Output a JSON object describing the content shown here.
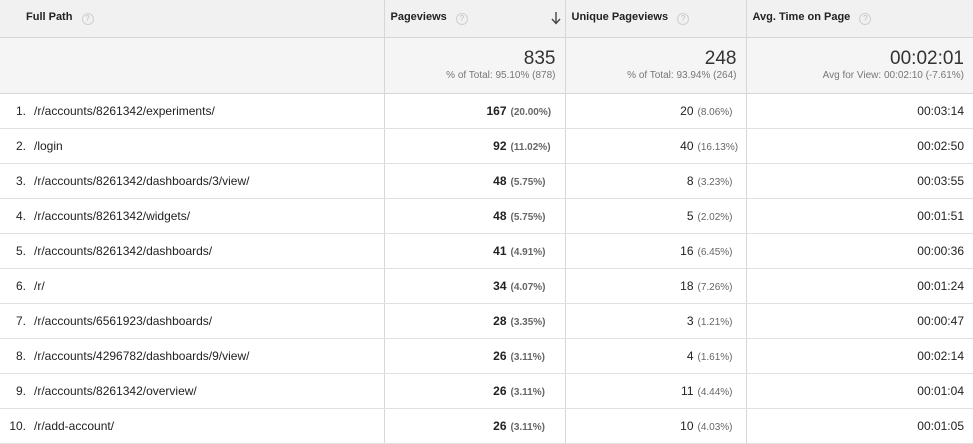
{
  "headers": {
    "path": "Full Path",
    "pageviews": "Pageviews",
    "unique_pageviews": "Unique Pageviews",
    "avg_time": "Avg. Time on Page",
    "help_glyph": "?"
  },
  "totals": {
    "pageviews": {
      "value": "835",
      "sub": "% of Total: 95.10% (878)"
    },
    "unique_pageviews": {
      "value": "248",
      "sub": "% of Total: 93.94% (264)"
    },
    "avg_time": {
      "value": "00:02:01",
      "sub": "Avg for View: 00:02:10 (-7.61%)"
    }
  },
  "rows": [
    {
      "index": "1.",
      "path": "/r/accounts/8261342/experiments/",
      "pageviews": "167",
      "pageviews_pct": "(20.00%)",
      "unique_pageviews": "20",
      "unique_pct": "(8.06%)",
      "avg_time": "00:03:14"
    },
    {
      "index": "2.",
      "path": "/login",
      "pageviews": "92",
      "pageviews_pct": "(11.02%)",
      "unique_pageviews": "40",
      "unique_pct": "(16.13%)",
      "avg_time": "00:02:50"
    },
    {
      "index": "3.",
      "path": "/r/accounts/8261342/dashboards/3/view/",
      "pageviews": "48",
      "pageviews_pct": "(5.75%)",
      "unique_pageviews": "8",
      "unique_pct": "(3.23%)",
      "avg_time": "00:03:55"
    },
    {
      "index": "4.",
      "path": "/r/accounts/8261342/widgets/",
      "pageviews": "48",
      "pageviews_pct": "(5.75%)",
      "unique_pageviews": "5",
      "unique_pct": "(2.02%)",
      "avg_time": "00:01:51"
    },
    {
      "index": "5.",
      "path": "/r/accounts/8261342/dashboards/",
      "pageviews": "41",
      "pageviews_pct": "(4.91%)",
      "unique_pageviews": "16",
      "unique_pct": "(6.45%)",
      "avg_time": "00:00:36"
    },
    {
      "index": "6.",
      "path": "/r/",
      "pageviews": "34",
      "pageviews_pct": "(4.07%)",
      "unique_pageviews": "18",
      "unique_pct": "(7.26%)",
      "avg_time": "00:01:24"
    },
    {
      "index": "7.",
      "path": "/r/accounts/6561923/dashboards/",
      "pageviews": "28",
      "pageviews_pct": "(3.35%)",
      "unique_pageviews": "3",
      "unique_pct": "(1.21%)",
      "avg_time": "00:00:47"
    },
    {
      "index": "8.",
      "path": "/r/accounts/4296782/dashboards/9/view/",
      "pageviews": "26",
      "pageviews_pct": "(3.11%)",
      "unique_pageviews": "4",
      "unique_pct": "(1.61%)",
      "avg_time": "00:02:14"
    },
    {
      "index": "9.",
      "path": "/r/accounts/8261342/overview/",
      "pageviews": "26",
      "pageviews_pct": "(3.11%)",
      "unique_pageviews": "11",
      "unique_pct": "(4.44%)",
      "avg_time": "00:01:04"
    },
    {
      "index": "10.",
      "path": "/r/add-account/",
      "pageviews": "26",
      "pageviews_pct": "(3.11%)",
      "unique_pageviews": "10",
      "unique_pct": "(4.03%)",
      "avg_time": "00:01:05"
    }
  ],
  "icons": {
    "sort": "sort-descending-arrow-icon",
    "help": "help-circle-icon"
  }
}
